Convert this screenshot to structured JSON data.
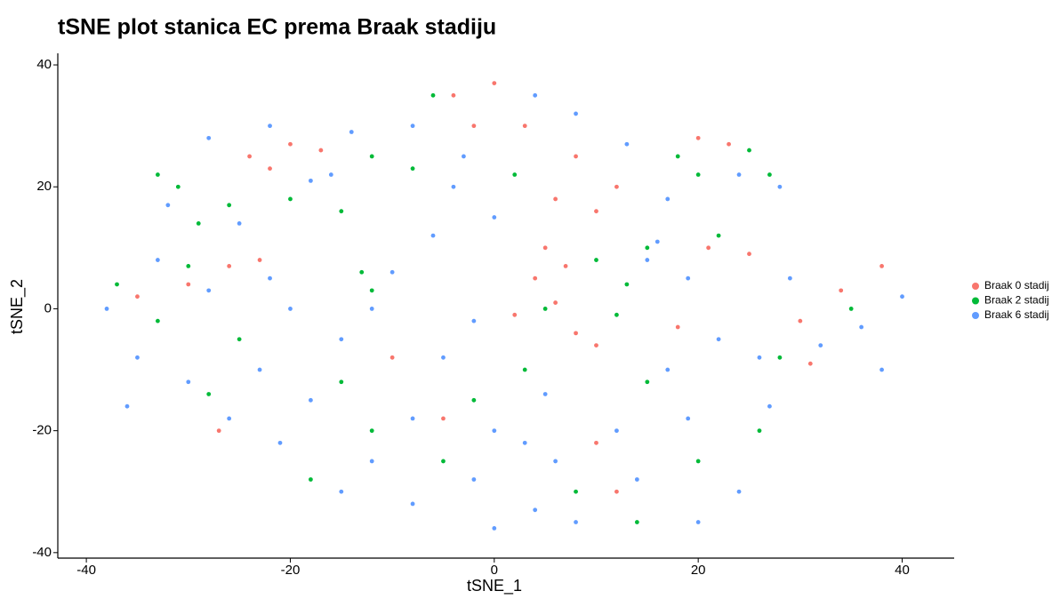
{
  "chart_data": {
    "type": "scatter",
    "title": "tSNE plot stanica EC prema Braak stadiju",
    "x_label": "tSNE_1",
    "y_label": "tSNE_2",
    "xlim": [
      -42.8,
      45.1
    ],
    "ylim": [
      -40.9,
      41.9
    ],
    "xticks": [
      -40,
      -20,
      0,
      20,
      40
    ],
    "yticks": [
      -40,
      -20,
      0,
      20,
      40
    ],
    "grid": false,
    "legend": "right",
    "series": [
      {
        "name": "Braak 0 stadij",
        "color": "#F8766D",
        "x": [
          -24,
          -20,
          -22,
          -17,
          -30,
          -26,
          -35,
          -23,
          -4,
          0,
          3,
          8,
          6,
          10,
          12,
          -2,
          4,
          6,
          8,
          10,
          2,
          7,
          20,
          23,
          21,
          25,
          18,
          30,
          34,
          38,
          31,
          -5,
          12,
          10,
          -27,
          -10,
          5
        ],
        "values": [
          25,
          27,
          23,
          26,
          4,
          7,
          2,
          8,
          35,
          37,
          30,
          25,
          18,
          16,
          20,
          30,
          5,
          1,
          -4,
          -6,
          -1,
          7,
          28,
          27,
          10,
          9,
          -3,
          -2,
          3,
          7,
          -9,
          -18,
          -30,
          -22,
          -20,
          -8,
          10
        ]
      },
      {
        "name": "Braak 2 stadij",
        "color": "#00BA38",
        "x": [
          -31,
          -29,
          -26,
          -33,
          -20,
          -15,
          -12,
          -37,
          -33,
          -30,
          -25,
          -13,
          -12,
          -8,
          2,
          -6,
          10,
          13,
          12,
          15,
          5,
          18,
          20,
          25,
          27,
          22,
          35,
          28,
          -5,
          -12,
          -18,
          -2,
          8,
          14,
          20,
          26,
          15,
          -28,
          3,
          -15
        ],
        "values": [
          20,
          14,
          17,
          22,
          18,
          16,
          25,
          4,
          -2,
          7,
          -5,
          6,
          3,
          23,
          22,
          35,
          8,
          4,
          -1,
          10,
          0,
          25,
          22,
          26,
          22,
          12,
          0,
          -8,
          -25,
          -20,
          -28,
          -15,
          -30,
          -35,
          -25,
          -20,
          -12,
          -14,
          -10,
          -12
        ]
      },
      {
        "name": "Braak 6 stadij",
        "color": "#619CFF",
        "x": [
          -28,
          -22,
          -14,
          -16,
          -25,
          -32,
          -18,
          -38,
          -35,
          -30,
          -26,
          -23,
          -20,
          -28,
          -33,
          -22,
          -12,
          -10,
          -15,
          -18,
          -21,
          -15,
          -8,
          -2,
          3,
          5,
          -5,
          -2,
          -8,
          -12,
          0,
          -6,
          -8,
          -3,
          0,
          4,
          8,
          13,
          15,
          -4,
          17,
          24,
          28,
          19,
          22,
          26,
          32,
          36,
          40,
          38,
          29,
          16,
          6,
          8,
          14,
          19,
          24,
          27,
          17,
          12,
          4,
          20,
          0,
          -36
        ],
        "values": [
          28,
          30,
          29,
          22,
          14,
          17,
          21,
          0,
          -8,
          -12,
          -18,
          -10,
          0,
          3,
          8,
          5,
          0,
          6,
          -5,
          -15,
          -22,
          -30,
          -32,
          -28,
          -22,
          -14,
          -8,
          -2,
          -18,
          -25,
          -20,
          12,
          30,
          25,
          15,
          35,
          32,
          27,
          8,
          20,
          18,
          22,
          20,
          5,
          -5,
          -8,
          -6,
          -3,
          2,
          -10,
          5,
          11,
          -25,
          -35,
          -28,
          -18,
          -30,
          -16,
          -10,
          -20,
          -33,
          -35,
          -36,
          -16
        ]
      }
    ]
  }
}
